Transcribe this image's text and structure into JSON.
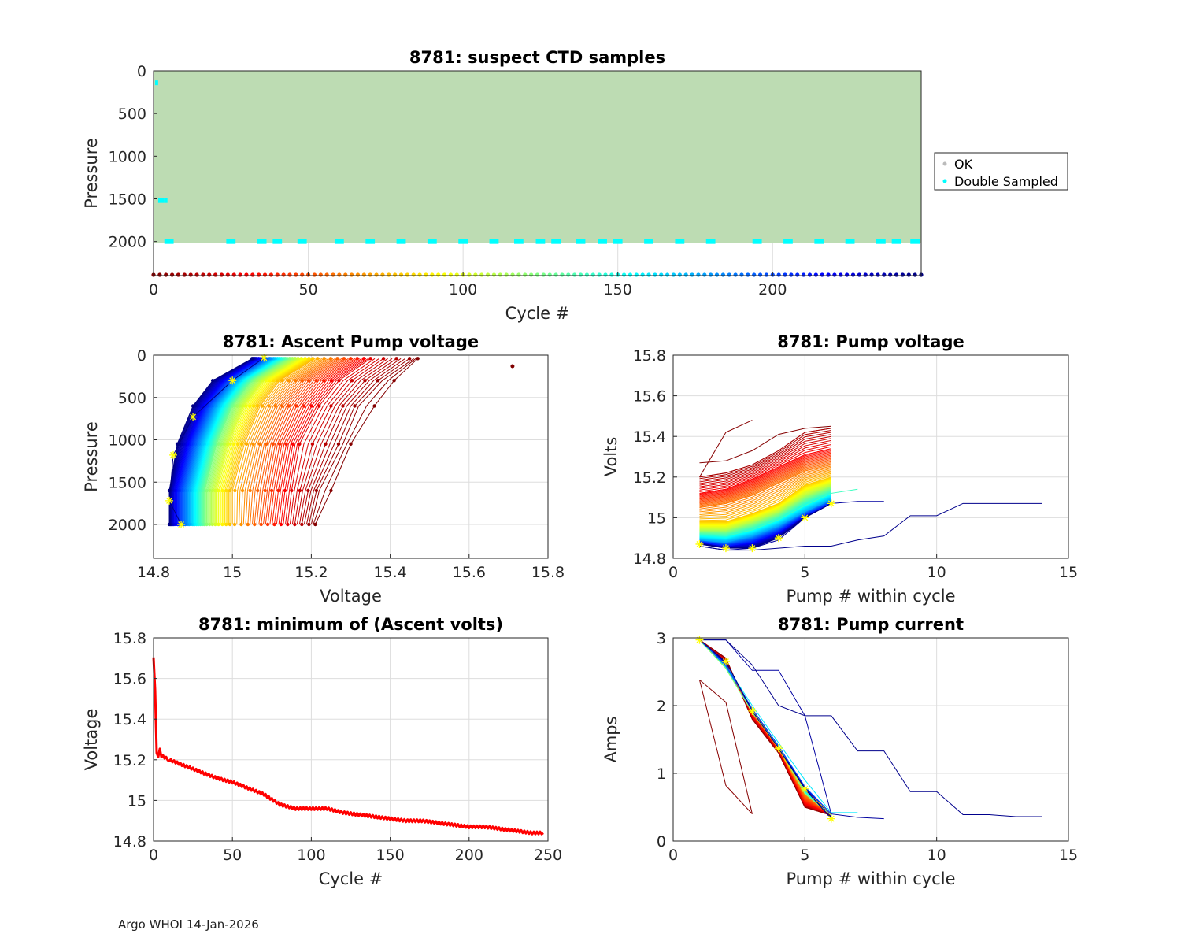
{
  "footer": {
    "lab": "Argo WHOI",
    "date": "14-Jan-2026"
  },
  "colors": {
    "ok": "#bddcb3",
    "double_sampled": "#00ffff",
    "min_volts_line": "#ff0000",
    "marker_star": "#ffff00",
    "grid": "#dddddd",
    "axis": "#262626"
  },
  "chart_data": [
    {
      "id": "suspect-ctd",
      "type": "scatter",
      "title": "8781: suspect CTD samples",
      "xlabel": "Cycle #",
      "ylabel": "Pressure",
      "xlim": [
        0,
        248
      ],
      "ylim": [
        0,
        2400
      ],
      "y_reversed": true,
      "xticks": [
        0,
        50,
        100,
        150,
        200
      ],
      "yticks": [
        0,
        500,
        1000,
        1500,
        2000
      ],
      "legend": {
        "placement": "outside-right",
        "entries": [
          "OK",
          "Double Sampled"
        ]
      },
      "ok_region": {
        "cycles": [
          0,
          248
        ],
        "pressure": [
          0,
          2020
        ]
      },
      "double_sampled": [
        {
          "cycle": 1,
          "pressure": 140
        },
        {
          "cycle": 2,
          "pressure": 1520
        },
        {
          "cycle": 3,
          "pressure": 1520
        },
        {
          "cycle": 4,
          "pressure": 1520
        },
        {
          "cycle": 5,
          "pressure": 2000
        },
        {
          "cycle": 25,
          "pressure": 2000
        },
        {
          "cycle": 35,
          "pressure": 2000
        },
        {
          "cycle": 40,
          "pressure": 2000
        },
        {
          "cycle": 48,
          "pressure": 2000
        },
        {
          "cycle": 60,
          "pressure": 2000
        },
        {
          "cycle": 70,
          "pressure": 2000
        },
        {
          "cycle": 80,
          "pressure": 2000
        },
        {
          "cycle": 90,
          "pressure": 2000
        },
        {
          "cycle": 100,
          "pressure": 2000
        },
        {
          "cycle": 110,
          "pressure": 2000
        },
        {
          "cycle": 118,
          "pressure": 2000
        },
        {
          "cycle": 125,
          "pressure": 2000
        },
        {
          "cycle": 130,
          "pressure": 2000
        },
        {
          "cycle": 138,
          "pressure": 2000
        },
        {
          "cycle": 145,
          "pressure": 2000
        },
        {
          "cycle": 150,
          "pressure": 2000
        },
        {
          "cycle": 160,
          "pressure": 2000
        },
        {
          "cycle": 170,
          "pressure": 2000
        },
        {
          "cycle": 180,
          "pressure": 2000
        },
        {
          "cycle": 195,
          "pressure": 2000
        },
        {
          "cycle": 205,
          "pressure": 2000
        },
        {
          "cycle": 215,
          "pressure": 2000
        },
        {
          "cycle": 225,
          "pressure": 2000
        },
        {
          "cycle": 235,
          "pressure": 2000
        },
        {
          "cycle": 240,
          "pressure": 2000
        },
        {
          "cycle": 246,
          "pressure": 2000
        }
      ],
      "cycle_color_strip": {
        "pressure": 2400,
        "cycles": [
          0,
          248
        ]
      }
    },
    {
      "id": "ascent-pump-voltage",
      "type": "line",
      "title": "8781: Ascent Pump voltage",
      "xlabel": "Voltage",
      "ylabel": "Pressure",
      "xlim": [
        14.8,
        15.8
      ],
      "ylim": [
        0,
        2400
      ],
      "y_reversed": true,
      "xticks": [
        14.8,
        15,
        15.2,
        15.4,
        15.6,
        15.8
      ],
      "yticks": [
        0,
        500,
        1000,
        1500,
        2000
      ],
      "profile_pressures": [
        2000,
        1600,
        1050,
        600,
        300,
        40
      ],
      "profiles": [
        {
          "cycle": 1,
          "volts": [
            15.21,
            15.25,
            15.3,
            15.36,
            15.41,
            15.47
          ]
        },
        {
          "cycle": 5,
          "volts": [
            15.2,
            15.22,
            15.28,
            15.32,
            15.38,
            15.46
          ]
        },
        {
          "cycle": 25,
          "volts": [
            15.14,
            15.15,
            15.17,
            15.22,
            15.27,
            15.35
          ]
        },
        {
          "cycle": 50,
          "volts": [
            15.07,
            15.08,
            15.1,
            15.14,
            15.19,
            15.28
          ]
        },
        {
          "cycle": 75,
          "volts": [
            15.0,
            15.0,
            15.03,
            15.07,
            15.12,
            15.21
          ]
        },
        {
          "cycle": 100,
          "volts": [
            14.96,
            14.96,
            14.99,
            15.03,
            15.08,
            15.17
          ]
        },
        {
          "cycle": 125,
          "volts": [
            14.93,
            14.93,
            14.96,
            15.0,
            15.05,
            15.14
          ]
        },
        {
          "cycle": 150,
          "volts": [
            14.91,
            14.91,
            14.94,
            14.98,
            15.03,
            15.12
          ]
        },
        {
          "cycle": 175,
          "volts": [
            14.89,
            14.89,
            14.92,
            14.96,
            15.01,
            15.1
          ]
        },
        {
          "cycle": 200,
          "volts": [
            14.87,
            14.87,
            14.9,
            14.94,
            14.99,
            15.08
          ]
        },
        {
          "cycle": 225,
          "volts": [
            14.85,
            14.85,
            14.88,
            14.92,
            14.97,
            15.06
          ]
        },
        {
          "cycle": 247,
          "volts": [
            14.84,
            14.84,
            14.86,
            14.9,
            14.95,
            15.05
          ]
        }
      ],
      "outlier": {
        "volts": 15.71,
        "pressure": 130
      },
      "latest_stars": [
        {
          "volts": 14.87,
          "pressure": 2000
        },
        {
          "volts": 14.84,
          "pressure": 1720
        },
        {
          "volts": 14.85,
          "pressure": 1180
        },
        {
          "volts": 14.9,
          "pressure": 730
        },
        {
          "volts": 15.0,
          "pressure": 300
        },
        {
          "volts": 15.08,
          "pressure": 30
        }
      ]
    },
    {
      "id": "pump-voltage",
      "type": "line",
      "title": "8781: Pump voltage",
      "xlabel": "Pump # within cycle",
      "ylabel": "Volts",
      "xlim": [
        0,
        15
      ],
      "ylim": [
        14.8,
        15.8
      ],
      "xticks": [
        0,
        5,
        10,
        15
      ],
      "yticks": [
        14.8,
        15,
        15.2,
        15.4,
        15.6,
        15.8
      ],
      "series": [
        {
          "cycle": 1,
          "pumps": [
            1,
            2,
            3,
            4,
            5,
            6
          ],
          "volts": [
            15.27,
            15.28,
            15.33,
            15.41,
            15.44,
            15.45
          ]
        },
        {
          "cycle": 2,
          "pumps": [
            1,
            2,
            3
          ],
          "volts": [
            15.2,
            15.42,
            15.48
          ]
        },
        {
          "cycle": 10,
          "pumps": [
            1,
            2,
            3,
            4,
            5,
            6
          ],
          "volts": [
            15.2,
            15.22,
            15.26,
            15.33,
            15.42,
            15.44
          ]
        },
        {
          "cycle": 30,
          "pumps": [
            1,
            2,
            3,
            4,
            5,
            6
          ],
          "volts": [
            15.12,
            15.14,
            15.19,
            15.25,
            15.31,
            15.34
          ]
        },
        {
          "cycle": 60,
          "pumps": [
            1,
            2,
            3,
            4,
            5,
            6
          ],
          "volts": [
            15.05,
            15.07,
            15.11,
            15.17,
            15.23,
            15.26
          ]
        },
        {
          "cycle": 80,
          "pumps": [
            1,
            2,
            3,
            4,
            5,
            6
          ],
          "volts": [
            14.98,
            14.98,
            15.02,
            15.07,
            15.16,
            15.2
          ]
        },
        {
          "cycle": 110,
          "pumps": [
            1,
            2,
            3,
            4,
            5,
            6
          ],
          "volts": [
            14.94,
            14.94,
            14.98,
            15.03,
            15.11,
            15.16
          ]
        },
        {
          "cycle": 140,
          "pumps": [
            1,
            2,
            3,
            4,
            5,
            6,
            7
          ],
          "volts": [
            14.92,
            14.91,
            14.94,
            14.99,
            15.06,
            15.12,
            15.14
          ]
        },
        {
          "cycle": 175,
          "pumps": [
            1,
            2,
            3,
            4,
            5,
            6
          ],
          "volts": [
            14.89,
            14.88,
            14.91,
            14.96,
            15.03,
            15.09
          ]
        },
        {
          "cycle": 210,
          "pumps": [
            1,
            2,
            3,
            4,
            5,
            6
          ],
          "volts": [
            14.88,
            14.86,
            14.88,
            14.93,
            15.01,
            15.07
          ]
        },
        {
          "cycle": 240,
          "pumps": [
            1,
            2,
            3,
            4,
            5,
            6,
            7,
            8
          ],
          "volts": [
            14.86,
            14.84,
            14.85,
            14.89,
            15.0,
            15.07,
            15.08,
            15.08
          ]
        },
        {
          "cycle": 245,
          "pumps": [
            1,
            2,
            3,
            4,
            5,
            6,
            7,
            8,
            9,
            10,
            11,
            12,
            13,
            14
          ],
          "volts": [
            14.86,
            14.84,
            14.84,
            14.85,
            14.86,
            14.86,
            14.89,
            14.91,
            15.01,
            15.01,
            15.07,
            15.07,
            15.07,
            15.07
          ]
        },
        {
          "cycle": 247,
          "pumps": [
            1,
            2,
            3,
            4,
            5,
            6
          ],
          "volts": [
            14.87,
            14.85,
            14.85,
            14.9,
            15.0,
            15.07
          ]
        }
      ],
      "latest_stars": [
        {
          "pump": 1,
          "volts": 14.87
        },
        {
          "pump": 2,
          "volts": 14.85
        },
        {
          "pump": 3,
          "volts": 14.85
        },
        {
          "pump": 4,
          "volts": 14.9
        },
        {
          "pump": 5,
          "volts": 15.0
        },
        {
          "pump": 6,
          "volts": 15.07
        }
      ]
    },
    {
      "id": "min-ascent-volts",
      "type": "line",
      "title": "8781: minimum of (Ascent volts)",
      "xlabel": "Cycle #",
      "ylabel": "Voltage",
      "xlim": [
        0,
        250
      ],
      "ylim": [
        14.8,
        15.8
      ],
      "xticks": [
        0,
        50,
        100,
        150,
        200,
        250
      ],
      "yticks": [
        14.8,
        15,
        15.2,
        15.4,
        15.6,
        15.8
      ],
      "x": [
        0,
        1,
        2,
        3,
        4,
        5,
        10,
        20,
        30,
        40,
        50,
        60,
        70,
        80,
        90,
        100,
        110,
        120,
        130,
        140,
        150,
        160,
        170,
        180,
        190,
        200,
        210,
        220,
        230,
        240,
        247
      ],
      "values": [
        15.71,
        15.55,
        15.24,
        15.22,
        15.26,
        15.22,
        15.2,
        15.17,
        15.14,
        15.11,
        15.09,
        15.06,
        15.03,
        14.98,
        14.96,
        14.96,
        14.96,
        14.94,
        14.93,
        14.92,
        14.91,
        14.9,
        14.9,
        14.89,
        14.88,
        14.87,
        14.87,
        14.86,
        14.85,
        14.84,
        14.84
      ]
    },
    {
      "id": "pump-current",
      "type": "line",
      "title": "8781: Pump current",
      "xlabel": "Pump # within cycle",
      "ylabel": "Amps",
      "xlim": [
        0,
        15
      ],
      "ylim": [
        0,
        3
      ],
      "xticks": [
        0,
        5,
        10,
        15
      ],
      "yticks": [
        0,
        1,
        2,
        3
      ],
      "series": [
        {
          "cycle": 1,
          "pumps": [
            1,
            2,
            3
          ],
          "amps": [
            2.38,
            2.05,
            0.4
          ]
        },
        {
          "cycle": 2,
          "pumps": [
            1,
            2,
            3
          ],
          "amps": [
            2.38,
            0.82,
            0.4
          ]
        },
        {
          "cycle": 5,
          "pumps": [
            1,
            2,
            3,
            4,
            5,
            6
          ],
          "amps": [
            2.97,
            2.7,
            1.8,
            1.3,
            0.5,
            0.38
          ]
        },
        {
          "cycle": 30,
          "pumps": [
            1,
            2,
            3,
            4,
            5,
            6
          ],
          "amps": [
            2.97,
            2.65,
            1.85,
            1.35,
            0.55,
            0.4
          ]
        },
        {
          "cycle": 80,
          "pumps": [
            1,
            2,
            3,
            4,
            5,
            6
          ],
          "amps": [
            2.97,
            2.6,
            1.95,
            1.35,
            0.75,
            0.4
          ]
        },
        {
          "cycle": 120,
          "pumps": [
            1,
            2,
            3,
            4,
            5,
            6
          ],
          "amps": [
            2.97,
            2.55,
            1.9,
            1.4,
            0.7,
            0.38
          ]
        },
        {
          "cycle": 160,
          "pumps": [
            1,
            2,
            3,
            4,
            5,
            6,
            7
          ],
          "amps": [
            2.97,
            2.6,
            2.0,
            1.45,
            0.9,
            0.42,
            0.42
          ]
        },
        {
          "cycle": 200,
          "pumps": [
            1,
            2,
            3,
            4,
            5,
            6
          ],
          "amps": [
            2.97,
            2.6,
            1.95,
            1.4,
            0.8,
            0.4
          ]
        },
        {
          "cycle": 240,
          "pumps": [
            1,
            2,
            3,
            4,
            5,
            6,
            7,
            8
          ],
          "amps": [
            2.97,
            2.97,
            2.52,
            2.52,
            1.85,
            0.4,
            0.35,
            0.33
          ]
        },
        {
          "cycle": 245,
          "pumps": [
            1,
            2,
            3,
            4,
            5,
            6,
            7,
            8,
            9,
            10,
            11,
            12,
            13,
            14
          ],
          "amps": [
            2.97,
            2.97,
            2.6,
            2.0,
            1.85,
            1.85,
            1.33,
            1.33,
            0.73,
            0.73,
            0.39,
            0.39,
            0.36,
            0.36
          ]
        },
        {
          "cycle": 247,
          "pumps": [
            1,
            2,
            3,
            4,
            5,
            6
          ],
          "amps": [
            2.97,
            2.65,
            1.92,
            1.37,
            0.77,
            0.33
          ]
        }
      ],
      "latest_stars": [
        {
          "pump": 1,
          "amps": 2.97
        },
        {
          "pump": 2,
          "amps": 2.65
        },
        {
          "pump": 3,
          "amps": 1.92
        },
        {
          "pump": 4,
          "amps": 1.37
        },
        {
          "pump": 5,
          "amps": 0.77
        },
        {
          "pump": 6,
          "amps": 0.33
        }
      ]
    }
  ]
}
